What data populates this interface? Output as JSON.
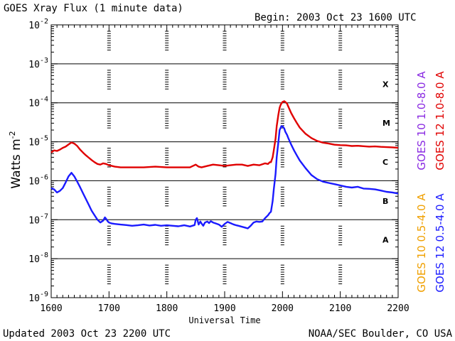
{
  "chart_data": {
    "type": "line",
    "title": "GOES Xray Flux (1 minute data)",
    "begin_label": "Begin: 2003 Oct 23 1600 UTC",
    "xlabel": "Universal Time",
    "ylabel_base": "Watts m",
    "ylabel_exp": "-2",
    "y_scale": "log",
    "ylim": [
      1e-09,
      0.01
    ],
    "xlim": [
      1600,
      2200
    ],
    "x_ticks": [
      "1600",
      "1700",
      "1800",
      "1900",
      "2000",
      "2100",
      "2200"
    ],
    "y_ticks": [
      {
        "base": "10",
        "exp": "-2"
      },
      {
        "base": "10",
        "exp": "-3"
      },
      {
        "base": "10",
        "exp": "-4"
      },
      {
        "base": "10",
        "exp": "-5"
      },
      {
        "base": "10",
        "exp": "-6"
      },
      {
        "base": "10",
        "exp": "-7"
      },
      {
        "base": "10",
        "exp": "-8"
      },
      {
        "base": "10",
        "exp": "-9"
      }
    ],
    "flare_classes": [
      "X",
      "M",
      "C",
      "B",
      "A"
    ],
    "series": [
      {
        "name": "GOES 12 1.0-8.0 A",
        "color": "#e00000",
        "x": [
          1600,
          1605,
          1610,
          1615,
          1620,
          1625,
          1630,
          1635,
          1640,
          1645,
          1650,
          1655,
          1660,
          1665,
          1670,
          1675,
          1680,
          1685,
          1690,
          1695,
          1700,
          1710,
          1720,
          1740,
          1760,
          1780,
          1800,
          1820,
          1840,
          1850,
          1855,
          1860,
          1870,
          1880,
          1890,
          1900,
          1910,
          1920,
          1930,
          1940,
          1950,
          1960,
          1970,
          1975,
          1978,
          1980,
          1983,
          1985,
          1988,
          1990,
          1993,
          1995,
          1997,
          2000,
          2003,
          2005,
          2008,
          2010,
          2015,
          2020,
          2025,
          2030,
          2040,
          2050,
          2060,
          2070,
          2080,
          2090,
          2100,
          2110,
          2120,
          2130,
          2140,
          2150,
          2160,
          2170,
          2180,
          2190,
          2200
        ],
        "y": [
          5.3e-06,
          6e-06,
          5.8e-06,
          6.3e-06,
          7e-06,
          7.5e-06,
          8.5e-06,
          9.6e-06,
          9e-06,
          7.8e-06,
          6.3e-06,
          5.3e-06,
          4.5e-06,
          3.9e-06,
          3.4e-06,
          3e-06,
          2.7e-06,
          2.6e-06,
          2.8e-06,
          2.7e-06,
          2.5e-06,
          2.3e-06,
          2.2e-06,
          2.2e-06,
          2.2e-06,
          2.3e-06,
          2.2e-06,
          2.2e-06,
          2.2e-06,
          2.6e-06,
          2.3e-06,
          2.2e-06,
          2.4e-06,
          2.6e-06,
          2.5e-06,
          2.4e-06,
          2.5e-06,
          2.6e-06,
          2.6e-06,
          2.4e-06,
          2.6e-06,
          2.5e-06,
          2.8e-06,
          2.7e-06,
          3e-06,
          3e-06,
          4e-06,
          6e-06,
          1.2e-05,
          2.5e-05,
          5e-05,
          7.5e-05,
          9e-05,
          0.000105,
          0.00011,
          0.000105,
          9.5e-05,
          8e-05,
          5.5e-05,
          4e-05,
          3e-05,
          2.3e-05,
          1.6e-05,
          1.25e-05,
          1.05e-05,
          9.5e-06,
          9e-06,
          8.4e-06,
          8.2e-06,
          8.1e-06,
          7.8e-06,
          7.9e-06,
          7.7e-06,
          7.5e-06,
          7.6e-06,
          7.4e-06,
          7.3e-06,
          7.2e-06,
          7e-06
        ]
      },
      {
        "name": "GOES 10 1.0-8.0 A",
        "color": "#8a2be2",
        "x": [],
        "y": []
      },
      {
        "name": "GOES 12 0.5-4.0 A",
        "color": "#1a1aff",
        "x": [
          1600,
          1605,
          1610,
          1615,
          1620,
          1625,
          1630,
          1635,
          1640,
          1645,
          1650,
          1655,
          1660,
          1665,
          1670,
          1675,
          1680,
          1685,
          1690,
          1693,
          1695,
          1698,
          1700,
          1705,
          1710,
          1720,
          1730,
          1740,
          1750,
          1760,
          1770,
          1780,
          1790,
          1800,
          1810,
          1820,
          1830,
          1840,
          1848,
          1850,
          1852,
          1855,
          1858,
          1860,
          1863,
          1866,
          1870,
          1873,
          1876,
          1880,
          1885,
          1890,
          1895,
          1900,
          1905,
          1910,
          1915,
          1920,
          1925,
          1930,
          1935,
          1940,
          1945,
          1950,
          1955,
          1960,
          1965,
          1970,
          1975,
          1978,
          1980,
          1983,
          1985,
          1988,
          1990,
          1993,
          1995,
          1998,
          2000,
          2003,
          2005,
          2008,
          2010,
          2015,
          2020,
          2025,
          2030,
          2040,
          2050,
          2060,
          2070,
          2080,
          2090,
          2100,
          2110,
          2120,
          2130,
          2140,
          2150,
          2160,
          2170,
          2180,
          2190,
          2200
        ],
        "y": [
          6.5e-07,
          6e-07,
          5e-07,
          5.5e-07,
          6.5e-07,
          9e-07,
          1.3e-06,
          1.6e-06,
          1.3e-06,
          9.5e-07,
          6.8e-07,
          4.8e-07,
          3.4e-07,
          2.4e-07,
          1.7e-07,
          1.3e-07,
          1e-07,
          8.5e-08,
          9.5e-08,
          1.15e-07,
          1.05e-07,
          9e-08,
          8.5e-08,
          8e-08,
          7.8e-08,
          7.5e-08,
          7.3e-08,
          7e-08,
          7.2e-08,
          7.5e-08,
          7.1e-08,
          7.4e-08,
          7e-08,
          7.2e-08,
          7e-08,
          6.8e-08,
          7.2e-08,
          6.7e-08,
          7.3e-08,
          1e-07,
          1.1e-07,
          7.5e-08,
          9e-08,
          8e-08,
          7e-08,
          8.5e-08,
          9e-08,
          8.2e-08,
          9.2e-08,
          8.5e-08,
          8e-08,
          7.5e-08,
          6.6e-08,
          7.8e-08,
          8.8e-08,
          8.2e-08,
          7.6e-08,
          7.2e-08,
          6.9e-08,
          6.6e-08,
          6.3e-08,
          6e-08,
          7e-08,
          8.5e-08,
          9e-08,
          8.8e-08,
          9e-08,
          1.1e-07,
          1.3e-07,
          1.5e-07,
          1.6e-07,
          3e-07,
          6e-07,
          1.5e-06,
          4e-06,
          1e-05,
          2e-05,
          2.5e-05,
          2.5e-05,
          2.2e-05,
          1.8e-05,
          1.5e-05,
          1.25e-05,
          8.5e-06,
          6e-06,
          4.4e-06,
          3.3e-06,
          2.1e-06,
          1.4e-06,
          1.1e-06,
          9.5e-07,
          8.8e-07,
          8.2e-07,
          7.6e-07,
          7e-07,
          6.7e-07,
          7e-07,
          6.3e-07,
          6.2e-07,
          6e-07,
          5.6e-07,
          5.2e-07,
          5e-07,
          4.7e-07
        ]
      },
      {
        "name": "GOES 10 0.5-4.0 A",
        "color": "#f0a000",
        "x": [],
        "y": []
      }
    ]
  },
  "footer": {
    "updated": "Updated 2003 Oct 23 2200 UTC",
    "credit": "NOAA/SEC Boulder, CO USA"
  }
}
